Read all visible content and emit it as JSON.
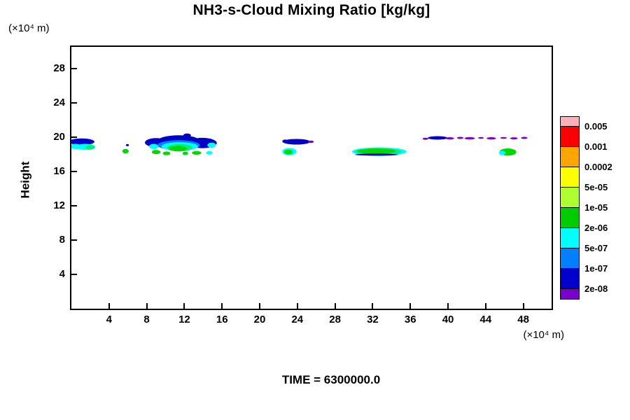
{
  "header": {
    "title": "NH3-s-Cloud Mixing Ratio [kg/kg]"
  },
  "axes": {
    "y_title": "Height",
    "y_unit": "(×10⁴ m)",
    "x_unit": "(×10⁴ m)"
  },
  "footer": {
    "time_label": "TIME = 6300000.0"
  },
  "chart_data": {
    "type": "heatmap",
    "title": "NH3-s-Cloud Mixing Ratio [kg/kg]",
    "xlabel": "(×10⁴ m)",
    "ylabel": "Height (×10⁴ m)",
    "xlim": [
      0,
      51
    ],
    "ylim": [
      0,
      30.5
    ],
    "xticks": [
      4,
      8,
      12,
      16,
      20,
      24,
      28,
      32,
      36,
      40,
      44,
      48
    ],
    "yticks": [
      4,
      8,
      12,
      16,
      20,
      24,
      28
    ],
    "grid": false,
    "legend_position": "right",
    "time": "TIME = 6300000.0",
    "levels": [
      "0.005",
      "0.001",
      "0.0002",
      "5e-05",
      "1e-05",
      "2e-06",
      "5e-07",
      "1e-07",
      "2e-08"
    ],
    "level_colors": [
      "#FFB0B8",
      "#FF0000",
      "#FFA500",
      "#FFFF00",
      "#ADFF2F",
      "#00CC00",
      "#00FFFF",
      "#0080FF",
      "#0000CD",
      "#7A00CC"
    ],
    "palette": {
      "navy": "#0000C8",
      "blue": "#0080FF",
      "cyan": "#00FFFF",
      "spring": "#00F07A",
      "green": "#00D800",
      "purple": "#7A00CC"
    },
    "clouds": [
      [
        1.1,
        19.45,
        1.35,
        0.38,
        "navy"
      ],
      [
        0.45,
        18.9,
        0.6,
        0.3,
        "cyan"
      ],
      [
        1.5,
        18.85,
        1.05,
        0.36,
        "cyan"
      ],
      [
        2.0,
        18.8,
        0.5,
        0.26,
        "spring"
      ],
      [
        5.75,
        18.35,
        0.34,
        0.26,
        "green"
      ],
      [
        5.95,
        19.05,
        0.16,
        0.12,
        "navy"
      ],
      [
        9.0,
        19.35,
        1.2,
        0.52,
        "navy"
      ],
      [
        11.4,
        19.62,
        2.15,
        0.58,
        "navy"
      ],
      [
        13.9,
        19.3,
        1.55,
        0.6,
        "navy"
      ],
      [
        12.3,
        20.2,
        0.4,
        0.22,
        "navy"
      ],
      [
        11.4,
        19.05,
        2.25,
        0.58,
        "blue"
      ],
      [
        11.5,
        18.9,
        1.95,
        0.5,
        "cyan"
      ],
      [
        11.5,
        18.75,
        1.35,
        0.42,
        "spring"
      ],
      [
        11.3,
        18.65,
        0.95,
        0.32,
        "green"
      ],
      [
        8.75,
        18.9,
        0.5,
        0.3,
        "cyan"
      ],
      [
        9.0,
        18.25,
        0.45,
        0.25,
        "green"
      ],
      [
        10.1,
        18.1,
        0.4,
        0.22,
        "green"
      ],
      [
        12.1,
        18.1,
        0.3,
        0.2,
        "green"
      ],
      [
        13.3,
        18.15,
        0.5,
        0.22,
        "green"
      ],
      [
        14.65,
        18.15,
        0.35,
        0.2,
        "cyan"
      ],
      [
        14.9,
        19.05,
        0.45,
        0.3,
        "cyan"
      ],
      [
        22.7,
        19.5,
        0.3,
        0.2,
        "navy"
      ],
      [
        23.9,
        19.45,
        1.45,
        0.33,
        "navy"
      ],
      [
        25.45,
        19.45,
        0.3,
        0.15,
        "purple"
      ],
      [
        23.15,
        18.3,
        0.75,
        0.42,
        "cyan"
      ],
      [
        23.05,
        18.25,
        0.45,
        0.28,
        "green"
      ],
      [
        32.7,
        18.3,
        2.9,
        0.5,
        "cyan"
      ],
      [
        32.6,
        18.3,
        2.5,
        0.4,
        "spring"
      ],
      [
        32.4,
        18.35,
        2.05,
        0.3,
        "green"
      ],
      [
        32.4,
        17.95,
        2.3,
        0.12,
        "navy"
      ],
      [
        46.35,
        18.25,
        0.9,
        0.42,
        "green"
      ],
      [
        45.75,
        18.15,
        0.35,
        0.25,
        "cyan"
      ],
      [
        37.6,
        19.8,
        0.3,
        0.12,
        "purple"
      ],
      [
        38.9,
        19.9,
        1.05,
        0.2,
        "navy"
      ],
      [
        40.2,
        19.85,
        0.45,
        0.13,
        "purple"
      ],
      [
        41.3,
        19.9,
        0.35,
        0.12,
        "purple"
      ],
      [
        42.3,
        19.85,
        0.55,
        0.14,
        "purple"
      ],
      [
        43.5,
        19.9,
        0.3,
        0.11,
        "purple"
      ],
      [
        44.6,
        19.85,
        0.5,
        0.13,
        "purple"
      ],
      [
        45.9,
        19.9,
        0.35,
        0.11,
        "purple"
      ],
      [
        47.0,
        19.85,
        0.4,
        0.12,
        "purple"
      ],
      [
        48.1,
        19.9,
        0.35,
        0.12,
        "purple"
      ]
    ]
  }
}
